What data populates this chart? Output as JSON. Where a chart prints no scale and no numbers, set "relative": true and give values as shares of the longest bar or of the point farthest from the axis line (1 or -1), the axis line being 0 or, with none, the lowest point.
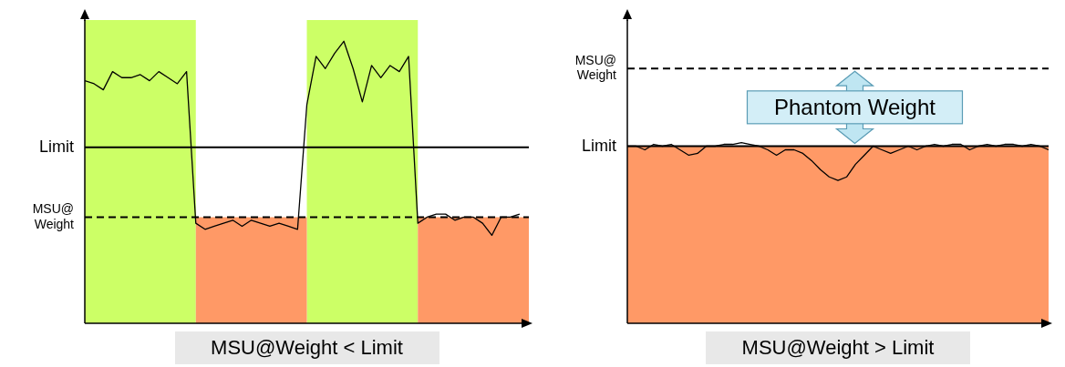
{
  "chart_data": [
    {
      "type": "line",
      "relative": true,
      "xlabel": "MSU@Weight < Limit",
      "categories": [
        null,
        null,
        null,
        null,
        null,
        null,
        null,
        null,
        null,
        null,
        null,
        null,
        null,
        null,
        null,
        null,
        null,
        null,
        null,
        null,
        null,
        null,
        null,
        null,
        null,
        null,
        null,
        null,
        null,
        null,
        null,
        null,
        null,
        null,
        null,
        null,
        null,
        null,
        null,
        null,
        null,
        null,
        null,
        null,
        null,
        null,
        null,
        null,
        null
      ],
      "series": [
        {
          "type": "area",
          "color": "#ccff66",
          "values": [
            1,
            1,
            1,
            1,
            1,
            1,
            1,
            1,
            1,
            1,
            1,
            1,
            1,
            null,
            null,
            null,
            null,
            null,
            null,
            null,
            null,
            null,
            null,
            null,
            1,
            1,
            1,
            1,
            1,
            1,
            1,
            1,
            1,
            1,
            1,
            1,
            1,
            null,
            null,
            null,
            null,
            null,
            null,
            null,
            null,
            null,
            null,
            null,
            null
          ]
        },
        {
          "type": "area",
          "color": "#ff9966",
          "values": [
            null,
            null,
            null,
            null,
            null,
            null,
            null,
            null,
            null,
            null,
            null,
            null,
            0.35,
            0.35,
            0.35,
            0.35,
            0.35,
            0.35,
            0.35,
            0.35,
            0.35,
            0.35,
            0.35,
            0.35,
            0.35,
            null,
            null,
            null,
            null,
            null,
            null,
            null,
            null,
            null,
            null,
            null,
            0.35,
            0.35,
            0.35,
            0.35,
            0.35,
            0.35,
            0.35,
            0.35,
            0.35,
            0.35,
            0.35,
            0.35,
            0.35
          ]
        },
        {
          "color": "#000000",
          "values": [
            0.8,
            0.79,
            0.77,
            0.83,
            0.81,
            0.81,
            0.82,
            0.8,
            0.83,
            0.81,
            0.79,
            0.83,
            0.33,
            0.31,
            0.32,
            0.33,
            0.34,
            0.32,
            0.34,
            0.33,
            0.32,
            0.33,
            0.32,
            0.31,
            0.72,
            0.88,
            0.84,
            0.89,
            0.93,
            0.84,
            0.73,
            0.85,
            0.81,
            0.85,
            0.83,
            0.88,
            0.33,
            0.35,
            0.36,
            0.36,
            0.34,
            0.35,
            0.35,
            0.33,
            0.29,
            0.35,
            0.35,
            0.36,
            null
          ]
        }
      ],
      "ref_lines": [
        {
          "axis": "y",
          "value": 0.58,
          "label": "Limit",
          "color": "#000000",
          "line_style": "solid"
        },
        {
          "axis": "y",
          "value": 0.35,
          "label": "MSU@Weight",
          "color": "#000000",
          "line_style": "dashed"
        }
      ]
    },
    {
      "type": "line",
      "relative": true,
      "xlabel": "MSU@Weight > Limit",
      "annotations": [
        "Phantom Weight"
      ],
      "categories": [
        null,
        null,
        null,
        null,
        null,
        null,
        null,
        null,
        null,
        null,
        null,
        null,
        null,
        null,
        null,
        null,
        null,
        null,
        null,
        null,
        null,
        null,
        null,
        null,
        null,
        null,
        null,
        null,
        null,
        null,
        null,
        null,
        null,
        null,
        null,
        null,
        null,
        null,
        null,
        null,
        null,
        null,
        null,
        null,
        null,
        null,
        null,
        null,
        null
      ],
      "bands": [
        {
          "axis": "y",
          "from": 0,
          "to": 0.98,
          "color": "#ff9966"
        }
      ],
      "series": [
        {
          "color": "#000000",
          "values": [
            0.98,
            0.98,
            0.96,
            0.99,
            0.98,
            0.99,
            0.96,
            0.93,
            0.94,
            0.98,
            0.98,
            0.99,
            0.99,
            1,
            0.99,
            0.98,
            0.96,
            0.93,
            0.96,
            0.96,
            0.94,
            0.9,
            0.85,
            0.81,
            0.79,
            0.81,
            0.88,
            0.93,
            0.98,
            0.96,
            0.94,
            0.96,
            0.98,
            0.96,
            0.98,
            0.99,
            0.98,
            0.99,
            0.99,
            0.96,
            0.98,
            0.99,
            0.98,
            0.99,
            0.99,
            0.98,
            0.99,
            0.98,
            0.96
          ]
        }
      ],
      "ref_lines": [
        {
          "axis": "y",
          "value": 0.98,
          "label": "Limit",
          "color": "#000000",
          "line_style": "solid"
        },
        {
          "axis": "y",
          "value": 1.41,
          "label": "MSU@Weight",
          "color": "#000000",
          "line_style": "dashed"
        }
      ]
    }
  ]
}
